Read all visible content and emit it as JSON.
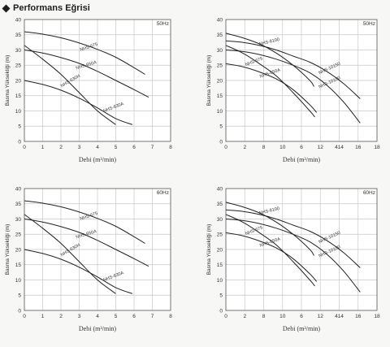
{
  "header": {
    "title": "Performans Eğrisi"
  },
  "chart_data": [
    {
      "type": "line",
      "frequency": "50Hz",
      "ylabel": "Basma Yüksekliği (m)",
      "xlabel": "Debi (m³/min)",
      "xlim": [
        0,
        8
      ],
      "ylim": [
        0,
        40
      ],
      "xticks": [
        "0",
        "1",
        "2",
        "3",
        "4",
        "5",
        "6",
        "7",
        "8"
      ],
      "yticks": [
        "0",
        "5",
        "10",
        "15",
        "20",
        "25",
        "30",
        "35",
        "40"
      ],
      "grid": true,
      "series": [
        {
          "name": "NHS-675",
          "x": [
            0,
            1,
            2,
            3,
            4,
            5,
            6,
            6.6
          ],
          "y": [
            36,
            35.2,
            34,
            32.3,
            30.2,
            27.6,
            24.2,
            22
          ],
          "label_at": [
            3.55,
            30.6,
            -25
          ]
        },
        {
          "name": "NHS-650A",
          "x": [
            0,
            1,
            2,
            3,
            4,
            5,
            6,
            6.8
          ],
          "y": [
            30,
            29,
            27.5,
            25.6,
            23,
            20,
            17,
            14.5
          ],
          "label_at": [
            3.4,
            24.6,
            -22
          ]
        },
        {
          "name": "NHS-630H",
          "x": [
            0,
            1,
            2,
            3,
            4,
            5
          ],
          "y": [
            31.5,
            27,
            22,
            16,
            10,
            5.5
          ],
          "label_at": [
            2.55,
            19.5,
            -40
          ]
        },
        {
          "name": "NHS-630A",
          "x": [
            0,
            1,
            2,
            3,
            4,
            5,
            5.9
          ],
          "y": [
            20,
            18.7,
            16.8,
            14.2,
            11,
            7.5,
            5.5
          ],
          "label_at": [
            4.9,
            10.8,
            -28
          ]
        }
      ]
    },
    {
      "type": "line",
      "frequency": "50Hz",
      "ylabel": "Basma Yüksekliği (m)",
      "xlabel": "Debi (m³/min)",
      "xlim": [
        0,
        18
      ],
      "ylim": [
        0,
        40
      ],
      "xticks": [
        "0",
        "2",
        "8",
        "10",
        "6",
        "12",
        "414",
        "16",
        "18"
      ],
      "yticks": [
        "0",
        "5",
        "10",
        "15",
        "20",
        "25",
        "30",
        "35",
        "40"
      ],
      "grid": true,
      "series": [
        {
          "name": "NHS-8100",
          "x": [
            0,
            2,
            4,
            6,
            8,
            10,
            10.5
          ],
          "y": [
            35.5,
            34,
            32,
            29,
            25,
            20,
            18
          ],
          "label_at": [
            5.2,
            32.3,
            -18
          ]
        },
        {
          "name": "NHS-675",
          "x": [
            0,
            2,
            4,
            6,
            8,
            10,
            10.6
          ],
          "y": [
            31.5,
            29,
            25.5,
            21.5,
            16,
            10,
            8
          ],
          "label_at": [
            3.4,
            25.8,
            -28
          ]
        },
        {
          "name": "NHS-650A",
          "x": [
            0,
            2,
            4,
            6,
            8,
            10,
            10.8
          ],
          "y": [
            25.5,
            24.5,
            22.8,
            20.5,
            17,
            12,
            9.5
          ],
          "label_at": [
            5.3,
            22,
            -25
          ]
        },
        {
          "name": "NHS-10150",
          "x": [
            0,
            2,
            4,
            6,
            8,
            10,
            12,
            14,
            16
          ],
          "y": [
            33,
            32.5,
            31.5,
            30,
            28,
            26,
            23,
            19,
            14
          ],
          "label_at": [
            12.4,
            23.6,
            -33
          ]
        },
        {
          "name": "NHS-10100",
          "x": [
            0,
            2,
            4,
            6,
            8,
            10,
            12,
            14,
            16
          ],
          "y": [
            30,
            29.5,
            28.5,
            27,
            25,
            22.5,
            18.5,
            13,
            6
          ],
          "label_at": [
            12.4,
            19,
            -33
          ]
        }
      ]
    },
    {
      "type": "line",
      "frequency": "60Hz",
      "ylabel": "Basma Yüksekliği (m)",
      "xlabel": "Debi (m³/min)",
      "xlim": [
        0,
        8
      ],
      "ylim": [
        0,
        40
      ],
      "xticks": [
        "0",
        "1",
        "2",
        "3",
        "4",
        "5",
        "6",
        "7",
        "8"
      ],
      "yticks": [
        "0",
        "5",
        "10",
        "15",
        "20",
        "25",
        "30",
        "35",
        "40"
      ],
      "grid": true,
      "series": [
        {
          "name": "NHS-675",
          "x": [
            0,
            1,
            2,
            3,
            4,
            5,
            6,
            6.6
          ],
          "y": [
            36,
            35.2,
            34,
            32.3,
            30.2,
            27.6,
            24.2,
            22
          ],
          "label_at": [
            3.55,
            30.6,
            -25
          ]
        },
        {
          "name": "NHS-650A",
          "x": [
            0,
            1,
            2,
            3,
            4,
            5,
            6,
            6.8
          ],
          "y": [
            30,
            29,
            27.5,
            25.6,
            23,
            20,
            17,
            14.5
          ],
          "label_at": [
            3.4,
            24.6,
            -22
          ]
        },
        {
          "name": "NHS-630H",
          "x": [
            0,
            1,
            2,
            3,
            4,
            5
          ],
          "y": [
            31.5,
            27,
            22,
            16,
            10,
            5.5
          ],
          "label_at": [
            2.55,
            19.5,
            -40
          ]
        },
        {
          "name": "NHS-630A",
          "x": [
            0,
            1,
            2,
            3,
            4,
            5,
            5.9
          ],
          "y": [
            20,
            18.7,
            16.8,
            14.2,
            11,
            7.5,
            5.5
          ],
          "label_at": [
            4.9,
            10.8,
            -28
          ]
        }
      ]
    },
    {
      "type": "line",
      "frequency": "60Hz",
      "ylabel": "Basma Yüksekliği (m)",
      "xlabel": "Debi (m³/min)",
      "xlim": [
        0,
        18
      ],
      "ylim": [
        0,
        40
      ],
      "xticks": [
        "0",
        "2",
        "8",
        "10",
        "6",
        "12",
        "414",
        "16",
        "18"
      ],
      "yticks": [
        "0",
        "5",
        "10",
        "15",
        "20",
        "25",
        "30",
        "35",
        "40"
      ],
      "grid": true,
      "series": [
        {
          "name": "NHS-8100",
          "x": [
            0,
            2,
            4,
            6,
            8,
            10,
            10.5
          ],
          "y": [
            35.5,
            34,
            32,
            29,
            25,
            20,
            18
          ],
          "label_at": [
            5.2,
            32.3,
            -18
          ]
        },
        {
          "name": "NHS-675",
          "x": [
            0,
            2,
            4,
            6,
            8,
            10,
            10.6
          ],
          "y": [
            31.5,
            29,
            25.5,
            21.5,
            16,
            10,
            8
          ],
          "label_at": [
            3.4,
            25.8,
            -28
          ]
        },
        {
          "name": "NHS-650A",
          "x": [
            0,
            2,
            4,
            6,
            8,
            10,
            10.8
          ],
          "y": [
            25.5,
            24.5,
            22.8,
            20.5,
            17,
            12,
            9.5
          ],
          "label_at": [
            5.3,
            22,
            -25
          ]
        },
        {
          "name": "NHS-10150",
          "x": [
            0,
            2,
            4,
            6,
            8,
            10,
            12,
            14,
            16
          ],
          "y": [
            33,
            32.5,
            31.5,
            30,
            28,
            26,
            23,
            19,
            14
          ],
          "label_at": [
            12.4,
            23.6,
            -33
          ]
        },
        {
          "name": "NHS-10100",
          "x": [
            0,
            2,
            4,
            6,
            8,
            10,
            12,
            14,
            16
          ],
          "y": [
            30,
            29.5,
            28.5,
            27,
            25,
            22.5,
            18.5,
            13,
            6
          ],
          "label_at": [
            12.4,
            19,
            -33
          ]
        }
      ]
    }
  ]
}
